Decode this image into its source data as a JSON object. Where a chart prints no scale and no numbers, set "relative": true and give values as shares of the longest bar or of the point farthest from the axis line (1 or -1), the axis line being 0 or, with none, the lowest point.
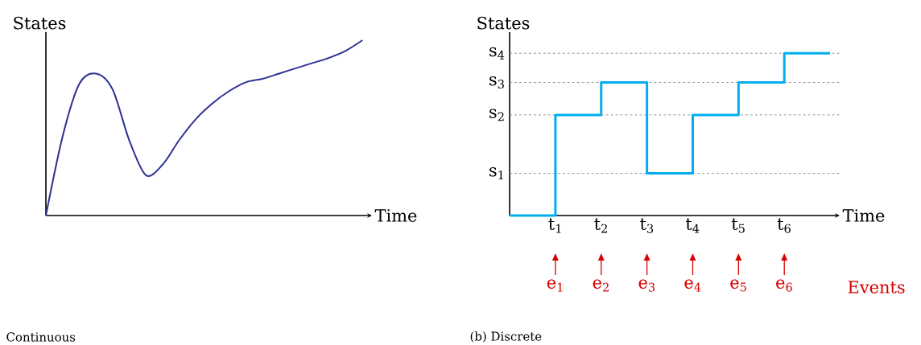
{
  "chart_data": [
    {
      "type": "line",
      "title": "Continuous",
      "xlabel": "Time",
      "ylabel": "States",
      "relative": true,
      "categories": [
        null,
        null,
        null,
        null,
        null,
        null,
        null,
        null,
        null,
        null,
        null,
        null,
        null,
        null,
        null,
        null,
        null,
        null,
        null,
        null
      ],
      "series": [
        {
          "color": "#2e3192",
          "values": [
            0,
            0.45,
            0.75,
            0.81,
            0.72,
            0.43,
            0.23,
            0.29,
            0.43,
            0.55,
            0.64,
            0.71,
            0.76,
            0.78,
            0.81,
            0.84,
            0.87,
            0.9,
            0.94,
            1
          ]
        }
      ]
    },
    {
      "type": "step",
      "title": "(b) Discrete",
      "xlabel": "Time",
      "ylabel": "States",
      "relative": true,
      "categories": [
        null,
        "t$_{1}$",
        "t$_{2}$",
        "t$_{3}$",
        "t$_{4}$",
        "t$_{5}$",
        "t$_{6}$",
        null
      ],
      "series": [
        {
          "color": "#00aeef",
          "values": [
            0,
            0.62,
            0.82,
            0.26,
            0.62,
            0.82,
            1,
            1
          ]
        }
      ],
      "ref_lines": [
        {
          "axis": "y",
          "value": 0.26,
          "label": "s$_{1}$",
          "color": "#8c8c8c",
          "line_style": "dashed"
        },
        {
          "axis": "y",
          "value": 0.62,
          "label": "s$_{2}$",
          "color": "#8c8c8c",
          "line_style": "dashed"
        },
        {
          "axis": "y",
          "value": 0.82,
          "label": "s$_{3}$",
          "color": "#8c8c8c",
          "line_style": "dashed"
        },
        {
          "axis": "y",
          "value": 1,
          "label": "s$_{4}$",
          "color": "#8c8c8c",
          "line_style": "dashed"
        }
      ],
      "annotations": [
        "e$_{1}$",
        "e$_{2}$",
        "e$_{3}$",
        "e$_{4}$",
        "e$_{5}$",
        "e$_{6}$",
        "Events"
      ]
    }
  ]
}
